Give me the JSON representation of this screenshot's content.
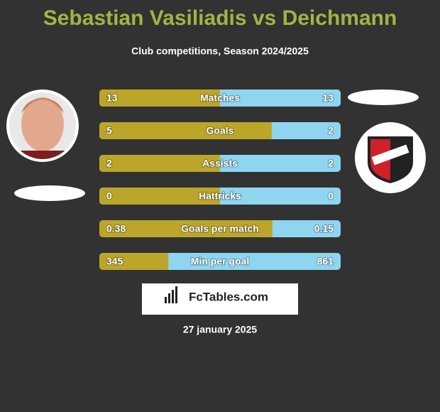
{
  "header": {
    "title": "Sebastian Vasiliadis vs Deichmann",
    "subtitle": "Club competitions, Season 2024/2025"
  },
  "rows": [
    {
      "label": "Matches",
      "left": 13,
      "right": 13
    },
    {
      "label": "Goals",
      "left": 5,
      "right": 2
    },
    {
      "label": "Assists",
      "left": 2,
      "right": 2
    },
    {
      "label": "Hattricks",
      "left": 0,
      "right": 0
    },
    {
      "label": "Goals per match",
      "left": 0.38,
      "right": 0.15
    },
    {
      "label": "Min per goal",
      "left": 345,
      "right": 861
    }
  ],
  "colors": {
    "left": "#bca629",
    "right": "#8ed5f0"
  },
  "footer": {
    "brand": "FcTables.com",
    "date": "27 january 2025"
  }
}
